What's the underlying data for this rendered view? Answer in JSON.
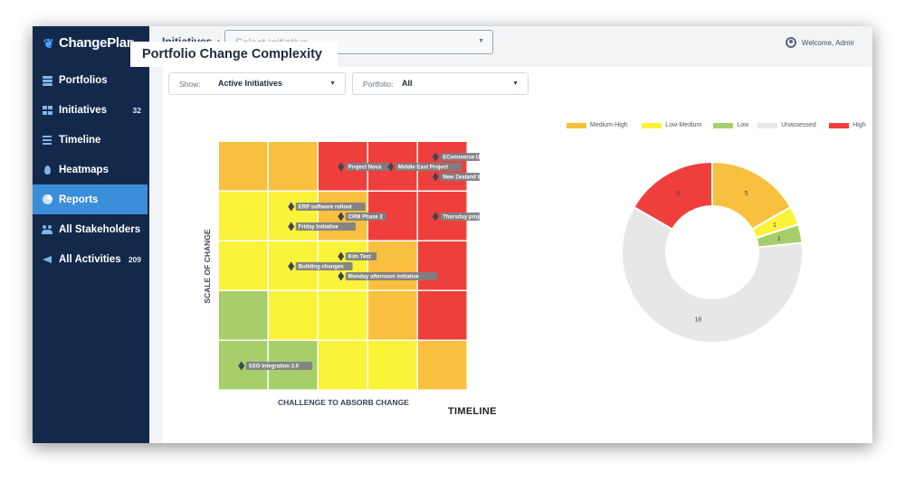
{
  "app": {
    "logo_text": "ChangePlan",
    "collapse_glyph": "‹"
  },
  "sidebar": {
    "items": [
      {
        "label": "Portfolios",
        "count": "",
        "icon": "stack-icon",
        "active": false
      },
      {
        "label": "Initiatives",
        "count": "32",
        "icon": "grid-icon",
        "active": false
      },
      {
        "label": "Timeline",
        "count": "",
        "icon": "lines-icon",
        "active": false
      },
      {
        "label": "Heatmaps",
        "count": "",
        "icon": "fire-icon",
        "active": false
      },
      {
        "label": "Reports",
        "count": "",
        "icon": "pie-chart-icon",
        "active": true
      },
      {
        "label": "All Stakeholders",
        "count": "",
        "icon": "people-icon",
        "active": false
      },
      {
        "label": "All Activities",
        "count": "209",
        "icon": "megaphone-icon",
        "active": false
      }
    ]
  },
  "header": {
    "breadcrumb": "Initiatives",
    "breadcrumb_sep": "›",
    "initiative_placeholder": "Select initiative",
    "welcome": "Welcome, Admir"
  },
  "page": {
    "title": "Portfolio Change Complexity",
    "timeline_title": "TIMELINE"
  },
  "filters": {
    "show_label": "Show:",
    "show_value": "Active Initiatives",
    "portfolio_label": "Portfolio:",
    "portfolio_value": "All",
    "dropdown_glyph": "▼"
  },
  "colors": {
    "green": "#a6cf6b",
    "yellow": "#fbf23a",
    "orange": "#f8c03e",
    "red": "#ef3f3c",
    "gray": "#e7e7e7",
    "sidebar_bg": "#13294b",
    "active": "#3b8fd9"
  },
  "chart_data": [
    {
      "type": "heatmap",
      "xlabel": "CHALLENGE TO ABSORB CHANGE",
      "ylabel": "SCALE OF CHANGE",
      "rows": 5,
      "cols": 5,
      "cell_colors": [
        [
          "orange",
          "orange",
          "red",
          "red",
          "red"
        ],
        [
          "yellow",
          "yellow",
          "orange",
          "red",
          "red"
        ],
        [
          "yellow",
          "yellow",
          "yellow",
          "orange",
          "red"
        ],
        [
          "green",
          "yellow",
          "yellow",
          "orange",
          "red"
        ],
        [
          "green",
          "green",
          "yellow",
          "yellow",
          "orange"
        ]
      ],
      "points": [
        {
          "label": "ECommerce Update",
          "col": 4.35,
          "row": 0.3
        },
        {
          "label": "Project Nova",
          "col": 2.45,
          "row": 0.5
        },
        {
          "label": "Middle East Project",
          "col": 3.45,
          "row": 0.5
        },
        {
          "label": "New Zealand Initiative",
          "col": 4.35,
          "row": 0.7
        },
        {
          "label": "ERP software rollout",
          "col": 1.45,
          "row": 1.3
        },
        {
          "label": "CRM Phase 2",
          "col": 2.45,
          "row": 1.5
        },
        {
          "label": "Thursday project",
          "col": 4.35,
          "row": 1.5
        },
        {
          "label": "Friday Initiative",
          "col": 1.45,
          "row": 1.7
        },
        {
          "label": "Kim Test",
          "col": 2.45,
          "row": 2.3
        },
        {
          "label": "Building changes",
          "col": 1.45,
          "row": 2.5
        },
        {
          "label": "Monday afternoon initiative",
          "col": 2.45,
          "row": 2.7
        },
        {
          "label": "SSO Integration 2.0",
          "col": 0.45,
          "row": 4.5
        }
      ]
    },
    {
      "type": "pie",
      "donut": true,
      "legend_position": "top",
      "legend": [
        {
          "name": "Medium-High",
          "color": "#f8c03e"
        },
        {
          "name": "Low-Medium",
          "color": "#fbf23a"
        },
        {
          "name": "Low",
          "color": "#a6cf6b"
        },
        {
          "name": "Unassessed",
          "color": "#e7e7e7"
        },
        {
          "name": "High",
          "color": "#ef3f3c"
        }
      ],
      "slices": [
        {
          "name": "Medium-High",
          "value": 5,
          "label": "5",
          "color": "#f8c03e"
        },
        {
          "name": "Low-Medium",
          "value": 1,
          "label": "1",
          "color": "#fbf23a"
        },
        {
          "name": "Low",
          "value": 1,
          "label": "1",
          "color": "#a6cf6b"
        },
        {
          "name": "Unassessed",
          "value": 18,
          "label": "18",
          "color": "#e7e7e7"
        },
        {
          "name": "High",
          "value": 5,
          "label": "5",
          "color": "#ef3f3c"
        }
      ]
    }
  ]
}
